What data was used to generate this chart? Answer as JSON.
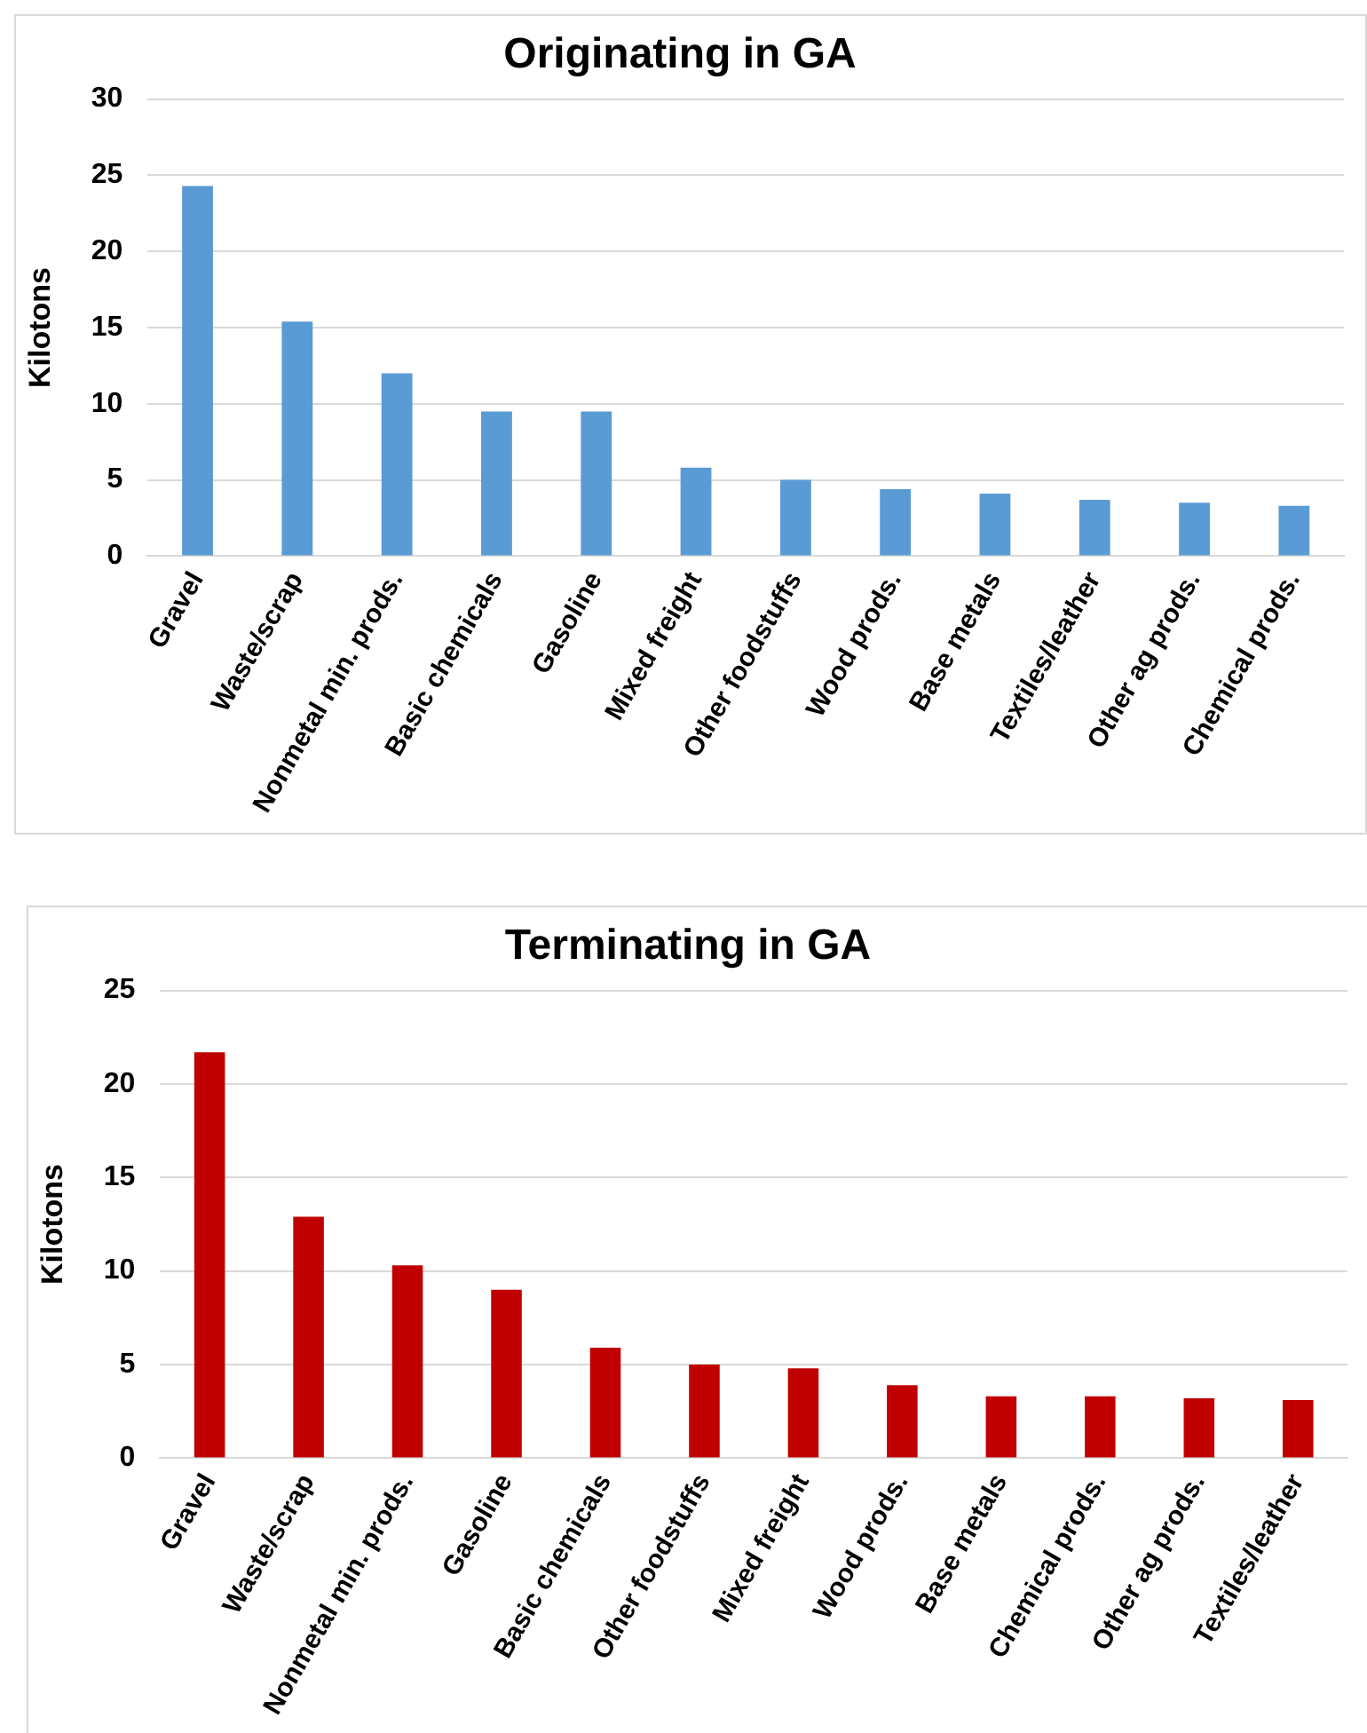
{
  "chart_data": [
    {
      "type": "bar",
      "title": "Originating in GA",
      "ylabel": "Kilotons",
      "categories": [
        "Gravel",
        "Waste/scrap",
        "Nonmetal min. prods.",
        "Basic chemicals",
        "Gasoline",
        "Mixed freight",
        "Other foodstuffs",
        "Wood prods.",
        "Base metals",
        "Textiles/leather",
        "Other ag prods.",
        "Chemical prods."
      ],
      "values": [
        24.3,
        15.4,
        12.0,
        9.5,
        9.5,
        5.8,
        5.0,
        4.4,
        4.1,
        3.7,
        3.5,
        3.3
      ],
      "color": "#5b9bd5",
      "ylim": [
        0,
        30
      ],
      "yticks": [
        0,
        5,
        10,
        15,
        20,
        25,
        30
      ],
      "grid": "y"
    },
    {
      "type": "bar",
      "title": "Terminating in GA",
      "ylabel": "Kilotons",
      "categories": [
        "Gravel",
        "Waste/scrap",
        "Nonmetal min. prods.",
        "Gasoline",
        "Basic chemicals",
        "Other foodstuffs",
        "Mixed freight",
        "Wood prods.",
        "Base metals",
        "Chemical prods.",
        "Other ag prods.",
        "Textiles/leather"
      ],
      "values": [
        21.7,
        12.9,
        10.3,
        9.0,
        5.9,
        5.0,
        4.8,
        3.9,
        3.3,
        3.3,
        3.2,
        3.1
      ],
      "color": "#c00000",
      "ylim": [
        0,
        25
      ],
      "yticks": [
        0,
        5,
        10,
        15,
        20,
        25
      ],
      "grid": "y"
    }
  ]
}
